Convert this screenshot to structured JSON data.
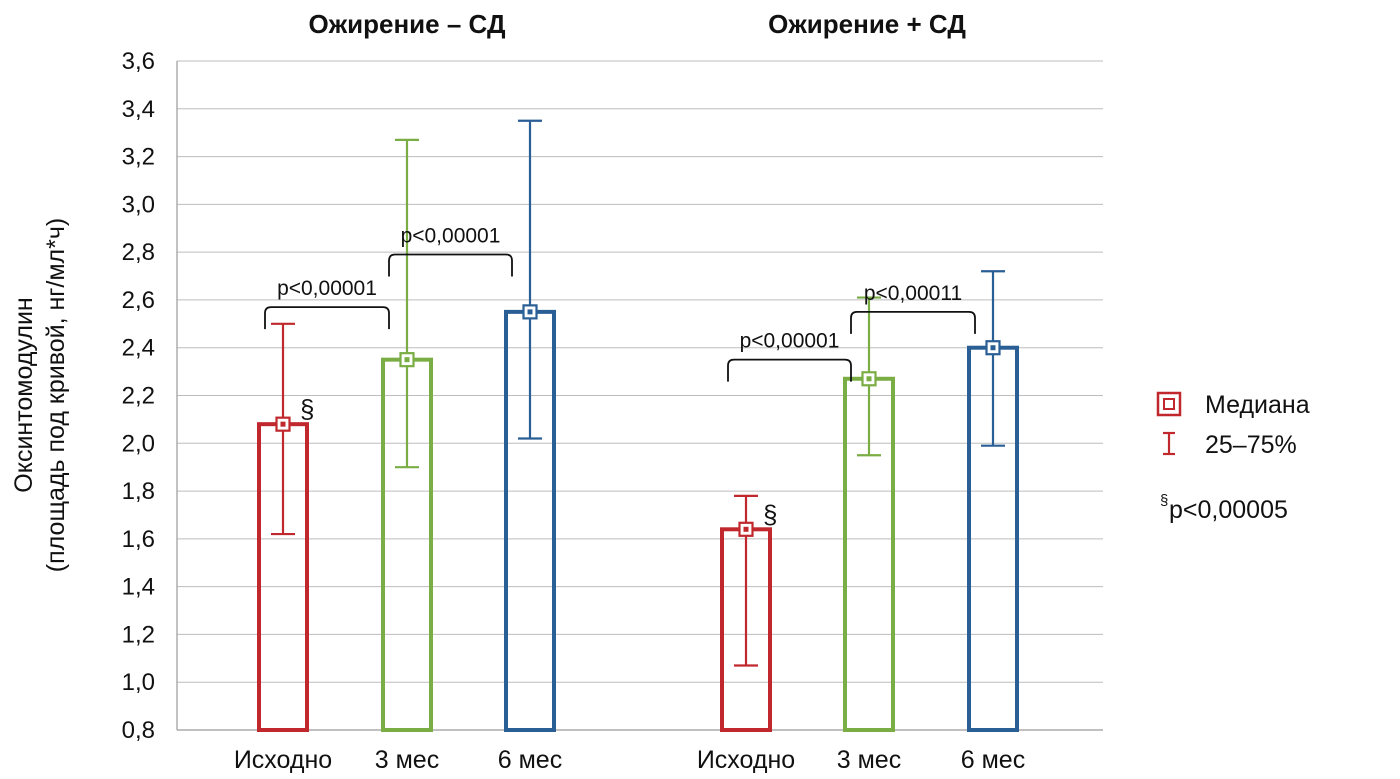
{
  "chart_data": {
    "type": "bar",
    "ylabel_line1": "Оксинтомодулин",
    "ylabel_line2": "(площадь под кривой, нг/мл*ч)",
    "ylim": [
      0.8,
      3.6
    ],
    "yticks": [
      "0,8",
      "1,0",
      "1,2",
      "1,4",
      "1,6",
      "1,8",
      "2,0",
      "2,2",
      "2,4",
      "2,6",
      "2,8",
      "3,0",
      "3,2",
      "3,4",
      "3,6"
    ],
    "grid": true,
    "colors": {
      "baseline": "#c0282d",
      "m3": "#7aad44",
      "m6": "#2a5f96"
    },
    "groups": [
      {
        "title": "Ожирение – СД",
        "bars": [
          {
            "category": "Исходно",
            "median": 2.08,
            "q25": 1.62,
            "q75": 2.5,
            "color": "baseline",
            "mark": "§"
          },
          {
            "category": "3 мес",
            "median": 2.35,
            "q25": 1.9,
            "q75": 3.27,
            "color": "m3",
            "mark": ""
          },
          {
            "category": "6 мес",
            "median": 2.55,
            "q25": 2.02,
            "q75": 3.35,
            "color": "m6",
            "mark": ""
          }
        ],
        "comparisons": [
          {
            "from": 0,
            "to": 1,
            "label": "p<0,00001",
            "level": 2.57
          },
          {
            "from": 1,
            "to": 2,
            "label": "p<0,00001",
            "level": 2.79
          }
        ]
      },
      {
        "title": "Ожирение + СД",
        "bars": [
          {
            "category": "Исходно",
            "median": 1.64,
            "q25": 1.07,
            "q75": 1.78,
            "color": "baseline",
            "mark": "§"
          },
          {
            "category": "3 мес",
            "median": 2.27,
            "q25": 1.95,
            "q75": 2.61,
            "color": "m3",
            "mark": ""
          },
          {
            "category": "6 мес",
            "median": 2.4,
            "q25": 1.99,
            "q75": 2.72,
            "color": "m6",
            "mark": ""
          }
        ],
        "comparisons": [
          {
            "from": 0,
            "to": 1,
            "label": "p<0,00001",
            "level": 2.35
          },
          {
            "from": 1,
            "to": 2,
            "label": "p<0,00011",
            "level": 2.55
          }
        ]
      }
    ],
    "legend": {
      "position": "right",
      "items": [
        {
          "label": "Медиана",
          "symbol": "median-square"
        },
        {
          "label": "25–75%",
          "symbol": "whisker"
        }
      ],
      "note_mark": "§",
      "note_text": "p<0,00005"
    }
  }
}
